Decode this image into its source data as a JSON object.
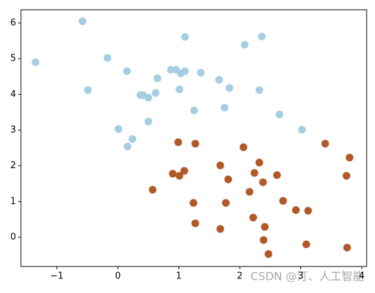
{
  "chart_data": {
    "type": "scatter",
    "xlim": [
      -1.59,
      4.08
    ],
    "ylim": [
      -0.82,
      6.37
    ],
    "xticks": [
      {
        "value": -1,
        "label": "−1"
      },
      0,
      1,
      2,
      3,
      4
    ],
    "yticks": [
      0,
      1,
      2,
      3,
      4,
      5,
      6
    ],
    "series": [
      {
        "color": "#a6cee3",
        "x": [
          -1.35,
          -0.58,
          -0.49,
          -0.17,
          0.15,
          0.01,
          0.16,
          0.24,
          0.37,
          0.41,
          0.5,
          0.5,
          0.62,
          0.65,
          0.87,
          0.95,
          1.03,
          1.01,
          1.1,
          1.1,
          1.25,
          1.36,
          1.66,
          1.75,
          1.83,
          2.08,
          2.36,
          2.32,
          2.65,
          3.02
        ],
        "values": [
          4.9,
          6.05,
          4.12,
          5.02,
          4.65,
          3.03,
          2.54,
          2.75,
          3.98,
          3.98,
          3.91,
          3.24,
          4.04,
          4.45,
          4.69,
          4.69,
          4.59,
          4.14,
          4.65,
          5.61,
          3.55,
          4.61,
          4.41,
          3.63,
          4.18,
          5.39,
          5.62,
          4.12,
          3.44,
          3.01
        ]
      },
      {
        "color": "#b15928",
        "x": [
          0.57,
          0.9,
          0.99,
          1.01,
          1.09,
          1.27,
          1.24,
          1.27,
          1.68,
          1.81,
          1.77,
          1.68,
          2.06,
          2.24,
          2.16,
          2.32,
          2.38,
          2.22,
          2.41,
          2.39,
          2.47,
          2.61,
          2.71,
          2.92,
          3.12,
          3.09,
          3.4,
          3.8,
          3.75,
          3.76
        ],
        "values": [
          1.33,
          1.78,
          2.66,
          1.72,
          1.86,
          2.62,
          0.96,
          0.39,
          2.01,
          1.62,
          0.96,
          0.23,
          2.52,
          1.8,
          1.27,
          2.09,
          1.54,
          0.55,
          0.29,
          -0.08,
          -0.47,
          1.74,
          1.02,
          0.76,
          0.74,
          -0.2,
          2.62,
          2.23,
          1.72,
          -0.29
        ]
      }
    ],
    "watermark": "CSDN @汀、人工智能"
  }
}
